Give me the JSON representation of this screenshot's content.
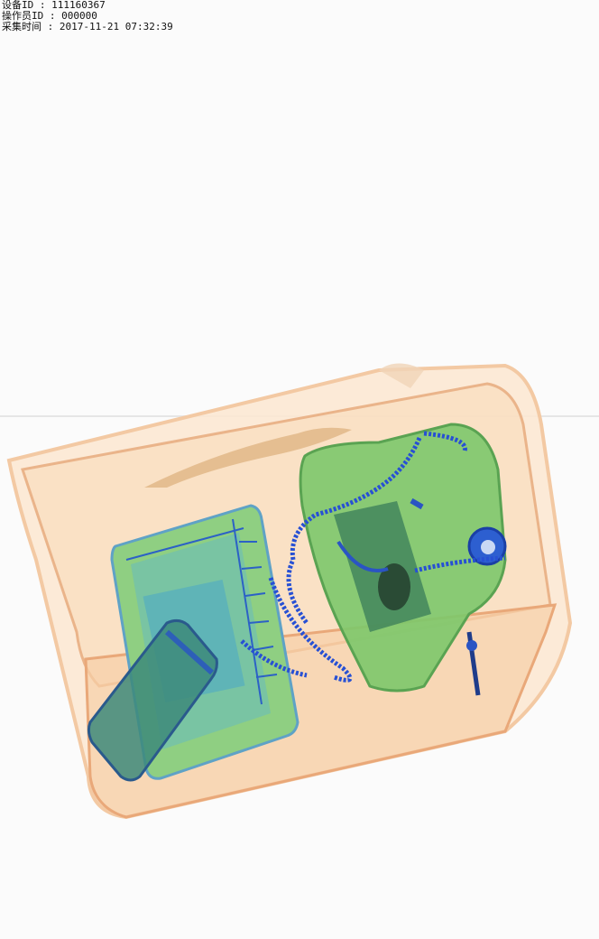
{
  "header": {
    "device_label": "设备ID",
    "device_value": "111160367",
    "operator_label": "操作员ID",
    "operator_value": "000000",
    "time_label": "采集时间",
    "time_value": "2017-11-21 07:32:39",
    "separator": " : "
  },
  "colors": {
    "background": "#fbfbfb",
    "organic_orange": "#f2b27a",
    "mixed_green": "#86c46a",
    "inorganic_blue": "#1f4fd0"
  }
}
